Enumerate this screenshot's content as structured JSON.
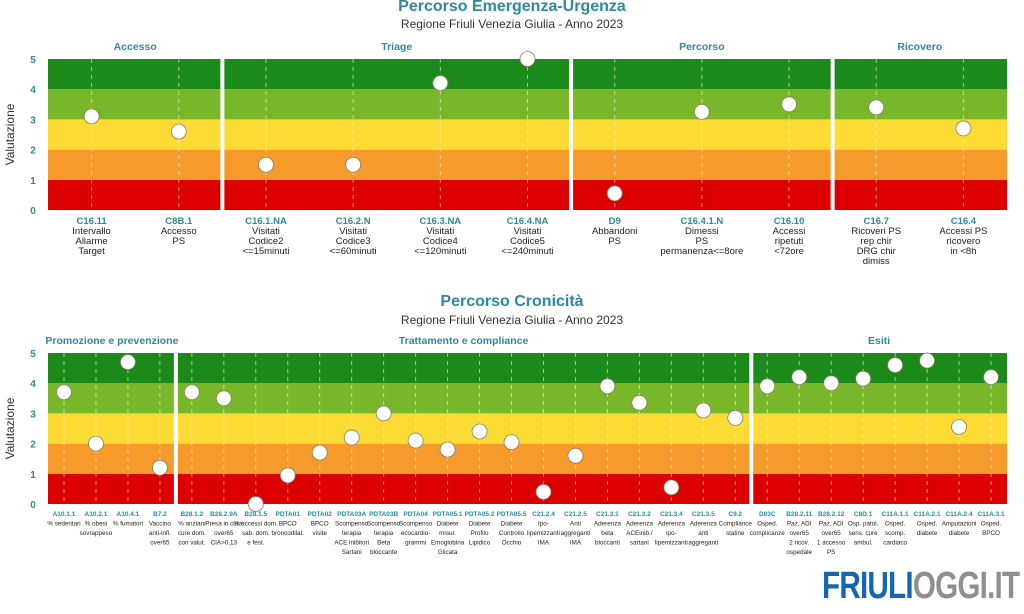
{
  "colors": {
    "band_0_1": "#dc0000",
    "band_1_2": "#f59a2b",
    "band_2_3": "#fddb35",
    "band_3_4": "#78b72a",
    "band_4_5": "#1c8a1a",
    "title": "#2a8aa0",
    "code": "#2a8aa0",
    "marker_fill": "#ffffff"
  },
  "logo": {
    "part1": "FRIULI",
    "part2": "OGGI.IT"
  },
  "chart_data": [
    {
      "type": "scatter",
      "title": "Percorso Emergenza-Urgenza",
      "subtitle": "Regione Friuli Venezia Giulia - Anno 2023",
      "ylabel": "Valutazione",
      "xlabel": "",
      "ylim": [
        0,
        5
      ],
      "yticks": [
        "0",
        "1",
        "2",
        "3",
        "4",
        "5"
      ],
      "grid": true,
      "bands": [
        {
          "from": 0,
          "to": 1,
          "color": "#dc0000"
        },
        {
          "from": 1,
          "to": 2,
          "color": "#f59a2b"
        },
        {
          "from": 2,
          "to": 3,
          "color": "#fddb35"
        },
        {
          "from": 3,
          "to": 4,
          "color": "#78b72a"
        },
        {
          "from": 4,
          "to": 5,
          "color": "#1c8a1a"
        }
      ],
      "sections": [
        {
          "name": "Accesso",
          "start": 0,
          "end": 1
        },
        {
          "name": "Triage",
          "start": 2,
          "end": 5
        },
        {
          "name": "Percorso",
          "start": 6,
          "end": 8
        },
        {
          "name": "Ricovero",
          "start": 9,
          "end": 10
        }
      ],
      "points": [
        {
          "code": "C16.11",
          "label": [
            "Intervallo",
            "Allarme",
            "Target"
          ],
          "value": 3.1
        },
        {
          "code": "C8B.1",
          "label": [
            "Accesso",
            "PS"
          ],
          "value": 2.6
        },
        {
          "code": "C16.1.NA",
          "label": [
            "Visitati",
            "Codice2",
            "<=15minuti"
          ],
          "value": 1.5
        },
        {
          "code": "C16.2.N",
          "label": [
            "Visitati",
            "Codice3",
            "<=60minuti"
          ],
          "value": 1.5
        },
        {
          "code": "C16.3.NA",
          "label": [
            "Visitati",
            "Codice4",
            "<=120minuti"
          ],
          "value": 4.2
        },
        {
          "code": "C16.4.NA",
          "label": [
            "Visitati",
            "Codice5",
            "<=240minuti"
          ],
          "value": 5.0
        },
        {
          "code": "D9",
          "label": [
            "Abbandoni",
            "PS"
          ],
          "value": 0.55
        },
        {
          "code": "C16.4.1.N",
          "label": [
            "Dimessi",
            "PS",
            "permanenza<=8ore"
          ],
          "value": 3.25
        },
        {
          "code": "C16.10",
          "label": [
            "Accessi",
            "ripetuti",
            "<72ore"
          ],
          "value": 3.5
        },
        {
          "code": "C16.7",
          "label": [
            "Ricoveri PS",
            "rep chir",
            "DRG chir",
            "dimiss"
          ],
          "value": 3.4
        },
        {
          "code": "C16.4",
          "label": [
            "Accessi PS",
            "ricovero",
            "in <8h"
          ],
          "value": 2.7
        }
      ]
    },
    {
      "type": "scatter",
      "title": "Percorso Cronicità",
      "subtitle": "Regione Friuli Venezia Giulia - Anno 2023",
      "ylabel": "Valutazione",
      "xlabel": "",
      "ylim": [
        0,
        5
      ],
      "yticks": [
        "0",
        "1",
        "2",
        "3",
        "4",
        "5"
      ],
      "grid": true,
      "bands": [
        {
          "from": 0,
          "to": 1,
          "color": "#dc0000"
        },
        {
          "from": 1,
          "to": 2,
          "color": "#f59a2b"
        },
        {
          "from": 2,
          "to": 3,
          "color": "#fddb35"
        },
        {
          "from": 3,
          "to": 4,
          "color": "#78b72a"
        },
        {
          "from": 4,
          "to": 5,
          "color": "#1c8a1a"
        }
      ],
      "sections": [
        {
          "name": "Promozione e prevenzione",
          "start": 0,
          "end": 3
        },
        {
          "name": "Trattamento e compliance",
          "start": 4,
          "end": 21
        },
        {
          "name": "Esiti",
          "start": 22,
          "end": 29
        }
      ],
      "points": [
        {
          "code": "A10.1.1",
          "label": [
            "% sedentari"
          ],
          "value": 3.7
        },
        {
          "code": "A10.2.1",
          "label": [
            "% obesi",
            "sovrappeso"
          ],
          "value": 2.0
        },
        {
          "code": "A10.4.1",
          "label": [
            "% fumatori"
          ],
          "value": 4.7
        },
        {
          "code": "B7.2",
          "label": [
            "Vaccino",
            "anti-infl.",
            "over65"
          ],
          "value": 1.2
        },
        {
          "code": "B28.1.2",
          "label": [
            "% anziani",
            "cure dom.",
            "con valut."
          ],
          "value": 3.7
        },
        {
          "code": "B28.2.9A",
          "label": [
            "Presa in cura",
            "over65",
            "CIA>0,13"
          ],
          "value": 3.5
        },
        {
          "code": "B28.1.5",
          "label": [
            "% accessi dom.",
            "sab. dom.",
            "e fest."
          ],
          "value": 0.0
        },
        {
          "code": "PDTA01",
          "label": [
            "BPCO",
            "broncodilat."
          ],
          "value": 0.95
        },
        {
          "code": "PDTA02",
          "label": [
            "BPCO",
            "visite"
          ],
          "value": 1.7
        },
        {
          "code": "PDTA03A",
          "label": [
            "Scompenso",
            "terapia",
            "ACE inibitori",
            "Sartani"
          ],
          "value": 2.2
        },
        {
          "code": "PDTA03B",
          "label": [
            "Scompenso",
            "terapia",
            "Beta",
            "bloccante"
          ],
          "value": 3.0
        },
        {
          "code": "PDTA04",
          "label": [
            "Scompenso",
            "ecocardio-",
            "grammi"
          ],
          "value": 2.1
        },
        {
          "code": "PDTA05.1",
          "label": [
            "Diabete",
            "misur.",
            "Emoglobina",
            "Glicata"
          ],
          "value": 1.8
        },
        {
          "code": "PDTA05.2",
          "label": [
            "Diabete",
            "Profilo",
            "Lipidico"
          ],
          "value": 2.4
        },
        {
          "code": "PDTA05.5",
          "label": [
            "Diabete",
            "Controllo",
            "Occhio"
          ],
          "value": 2.05
        },
        {
          "code": "C21.2.4",
          "label": [
            "Ipo-",
            "lipemizzanti",
            "IMA"
          ],
          "value": 0.4
        },
        {
          "code": "C21.2.5",
          "label": [
            "Anti",
            "aggreganti",
            "IMA"
          ],
          "value": 1.6
        },
        {
          "code": "C21.3.1",
          "label": [
            "Aderenza",
            "beta",
            "bloccanti"
          ],
          "value": 3.9
        },
        {
          "code": "C21.3.2",
          "label": [
            "Aderenza",
            "ACEinib./",
            "sartani"
          ],
          "value": 3.35
        },
        {
          "code": "C21.3.4",
          "label": [
            "Aderenza",
            "ipo-",
            "lipemizzanti"
          ],
          "value": 0.55
        },
        {
          "code": "C21.3.5",
          "label": [
            "Aderenza",
            "anti",
            "aggreganti"
          ],
          "value": 3.1
        },
        {
          "code": "C9.2",
          "label": [
            "Compliance",
            "statine"
          ],
          "value": 2.85
        },
        {
          "code": "D03C",
          "label": [
            "Osped.",
            "complicanze"
          ],
          "value": 3.9
        },
        {
          "code": "B28.2.11",
          "label": [
            "Paz. ADI",
            "over65",
            "2 ricov.",
            "ospedale"
          ],
          "value": 4.2
        },
        {
          "code": "B28.2.12",
          "label": [
            "Paz. ADI",
            "over65",
            "1 accesso",
            "PS"
          ],
          "value": 4.0
        },
        {
          "code": "C8D.1",
          "label": [
            "Osp. patol.",
            "sens. cure",
            "ambul."
          ],
          "value": 4.15
        },
        {
          "code": "C11A.1.1",
          "label": [
            "Osped.",
            "scomp.",
            "cardiaco"
          ],
          "value": 4.6
        },
        {
          "code": "C11A.2.1",
          "label": [
            "Osped.",
            "diabete"
          ],
          "value": 4.75
        },
        {
          "code": "C11A.2.4",
          "label": [
            "Amputazioni",
            "diabete"
          ],
          "value": 2.55
        },
        {
          "code": "C11A.3.1",
          "label": [
            "Osped.",
            "BPCO"
          ],
          "value": 4.2
        }
      ]
    }
  ]
}
